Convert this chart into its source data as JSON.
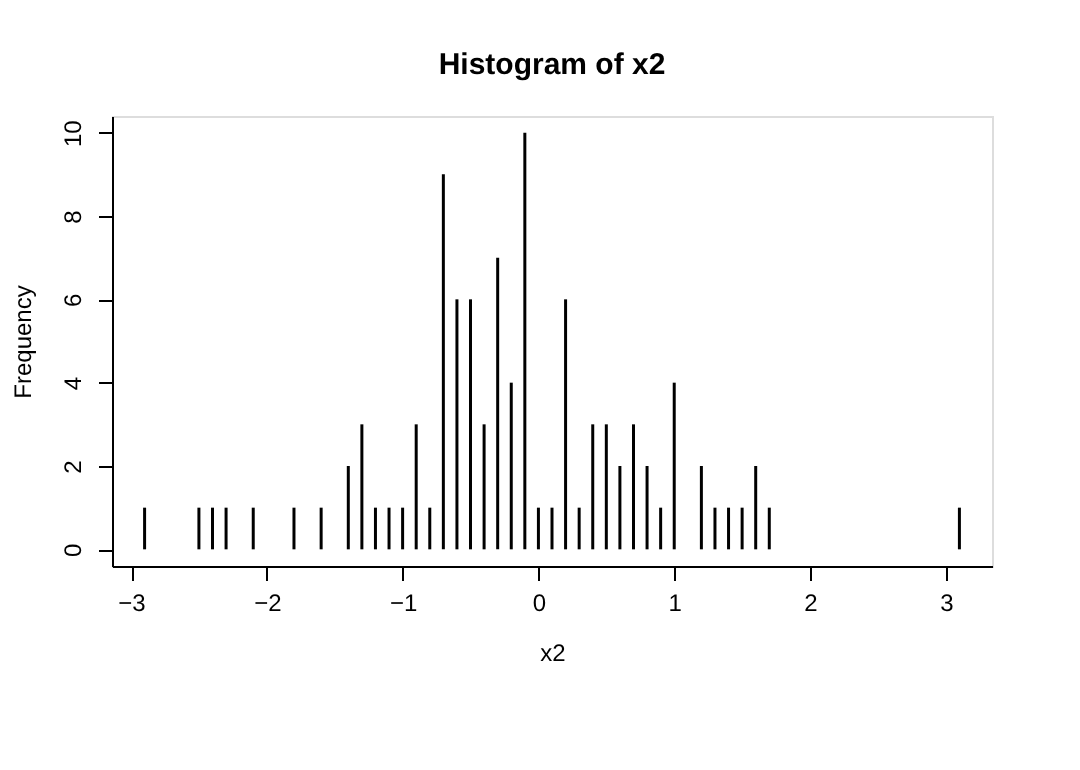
{
  "chart_data": {
    "type": "bar",
    "title": "Histogram of x2",
    "xlabel": "x2",
    "ylabel": "Frequency",
    "x": [
      -2.9,
      -2.5,
      -2.4,
      -2.3,
      -2.1,
      -1.8,
      -1.6,
      -1.4,
      -1.3,
      -1.2,
      -1.1,
      -1.0,
      -0.9,
      -0.8,
      -0.7,
      -0.6,
      -0.5,
      -0.4,
      -0.3,
      -0.2,
      -0.1,
      0.0,
      0.1,
      0.2,
      0.3,
      0.4,
      0.5,
      0.6,
      0.7,
      0.8,
      0.9,
      1.0,
      1.2,
      1.3,
      1.4,
      1.5,
      1.6,
      1.7,
      3.1
    ],
    "values": [
      1,
      1,
      1,
      1,
      1,
      1,
      1,
      2,
      3,
      1,
      1,
      1,
      3,
      1,
      9,
      6,
      6,
      3,
      7,
      4,
      10,
      1,
      1,
      6,
      1,
      3,
      3,
      2,
      3,
      2,
      1,
      4,
      2,
      1,
      1,
      1,
      2,
      1,
      1
    ],
    "color": "#000000",
    "xlim": [
      -3.14,
      3.34
    ],
    "xticks": [
      -3,
      -2,
      -1,
      0,
      1,
      2,
      3
    ],
    "ylim": [
      -0.4,
      10.4
    ],
    "yticks": [
      0,
      2,
      4,
      6,
      8,
      10
    ],
    "grid": false
  }
}
